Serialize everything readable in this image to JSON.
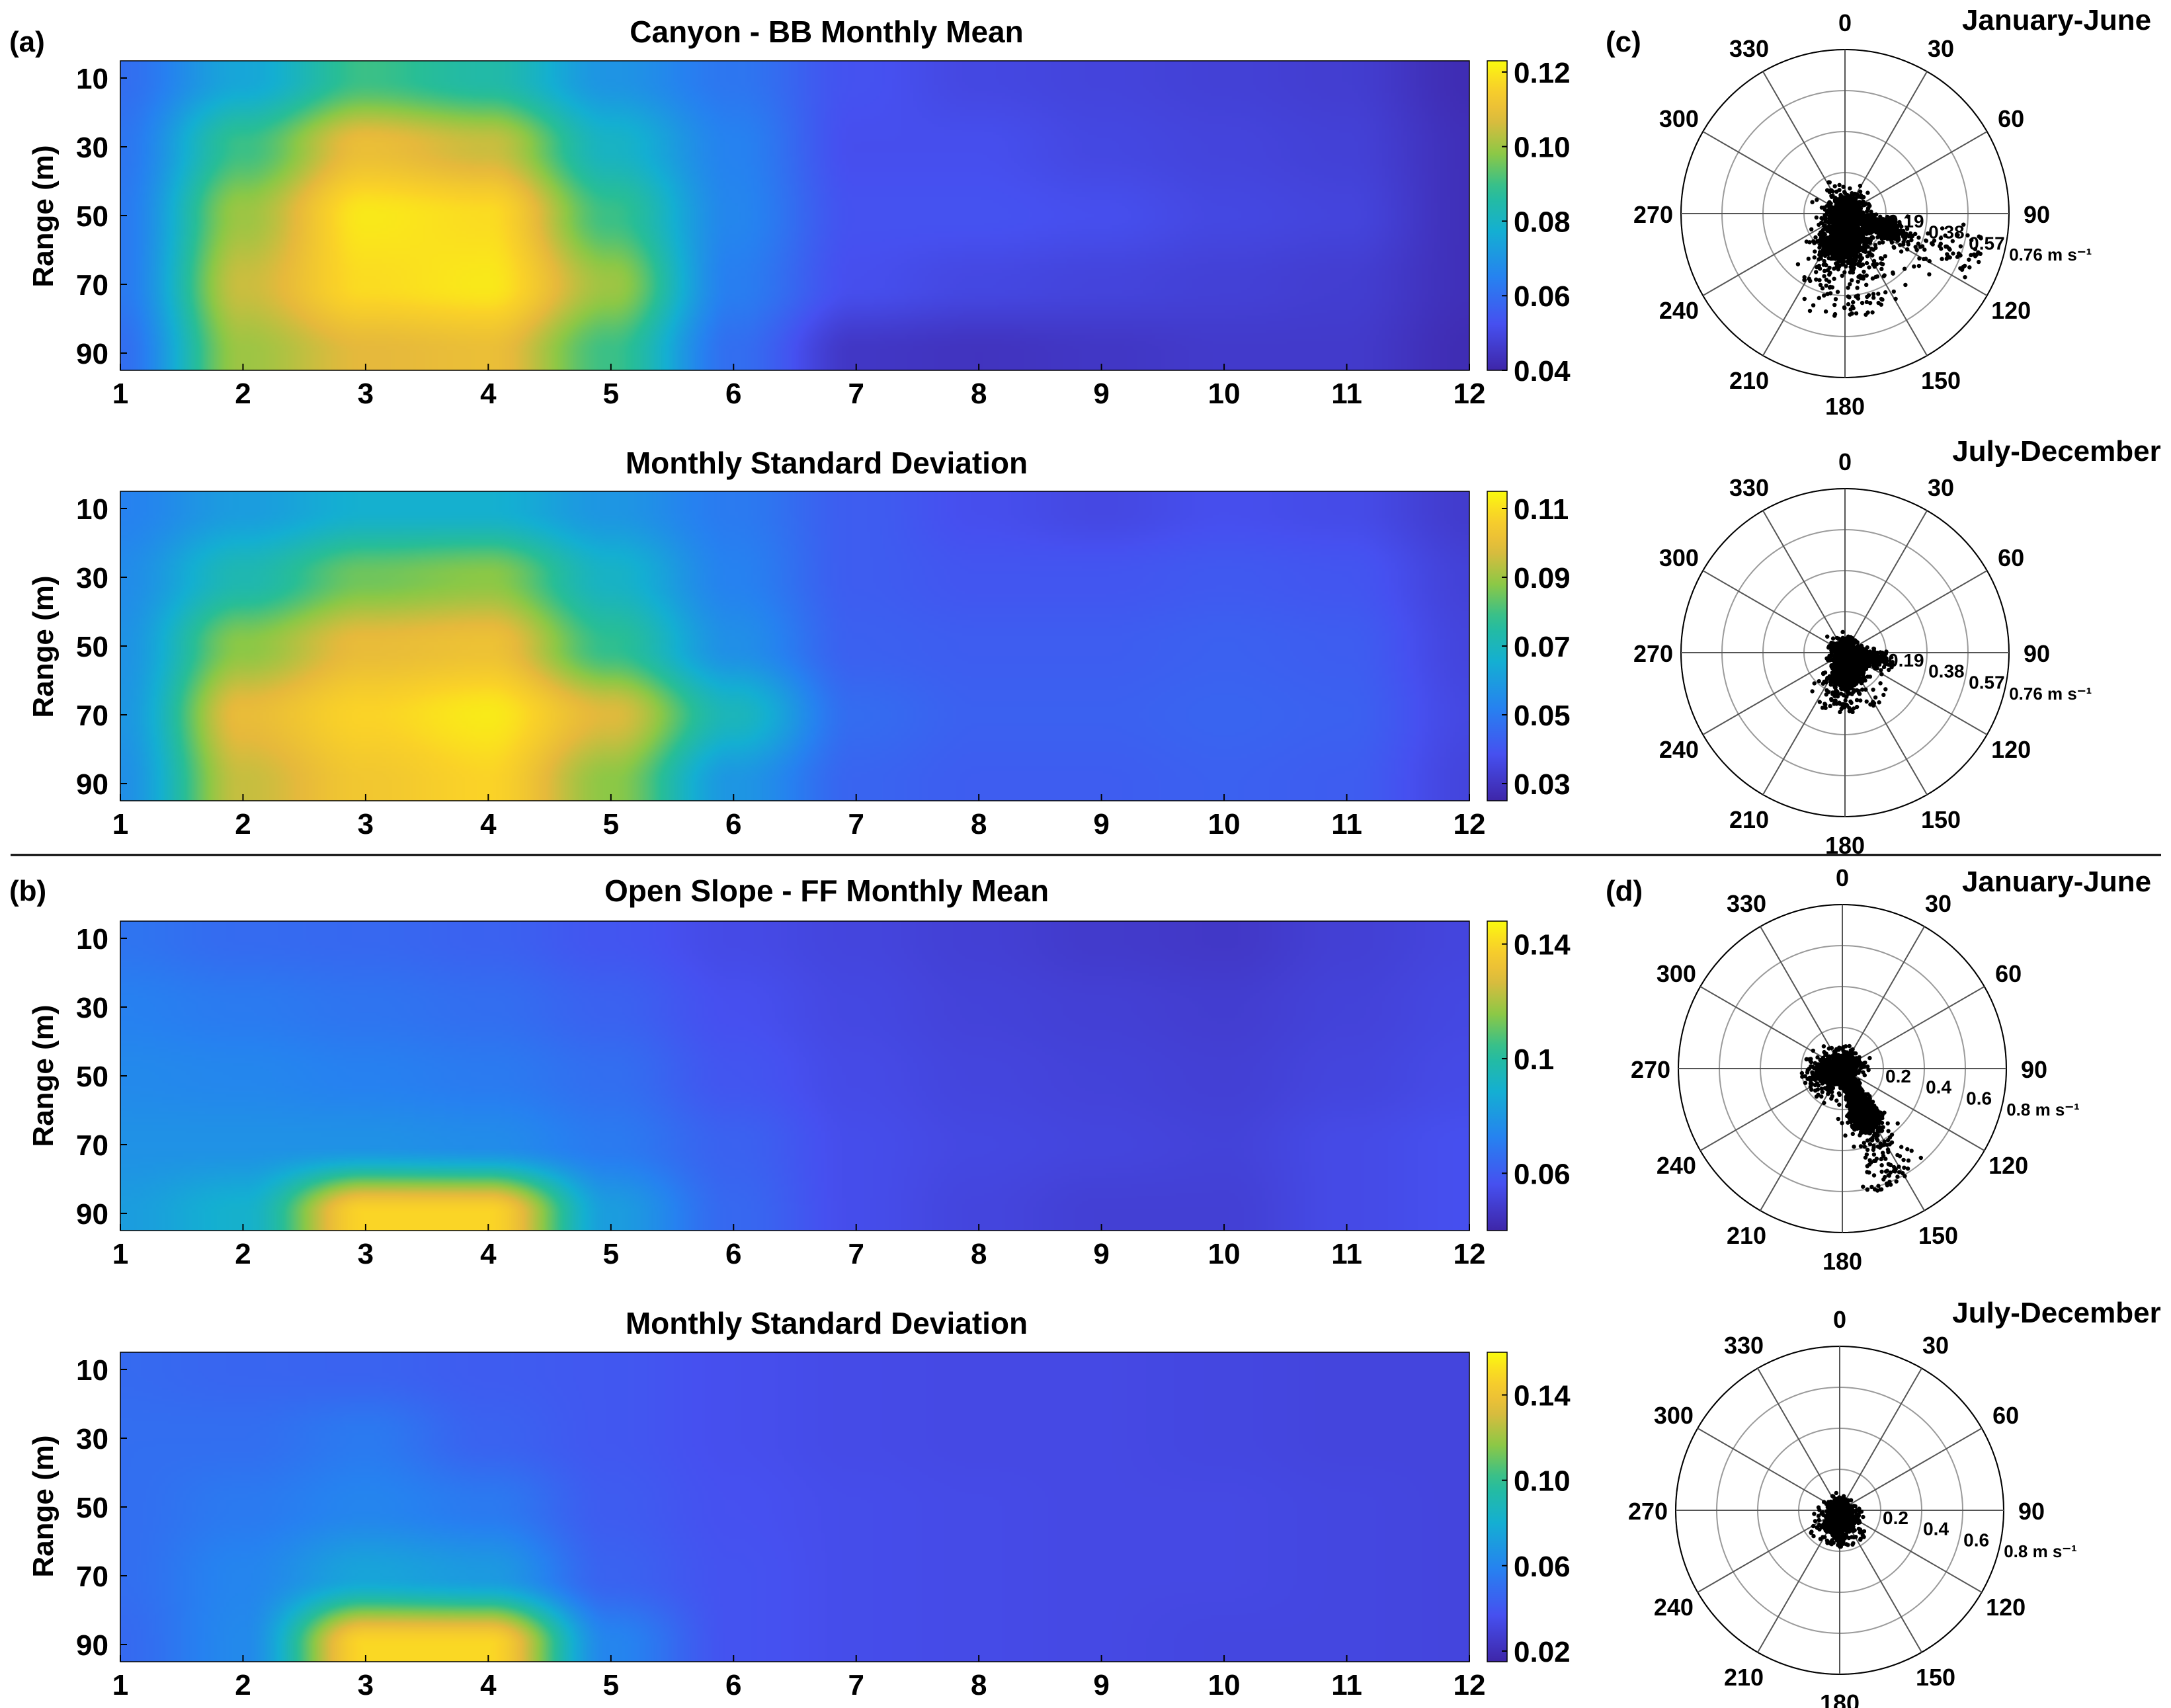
{
  "figure": {
    "panel_labels": [
      "(a)",
      "(b)",
      "(c)",
      "(d)"
    ]
  },
  "chart_data": [
    {
      "type": "heatmap",
      "panel": "(a)",
      "title": "Canyon - BB Monthly Mean",
      "xlabel": "",
      "ylabel": "Range (m)",
      "x_ticks": [
        "1",
        "2",
        "3",
        "4",
        "5",
        "6",
        "7",
        "8",
        "9",
        "10",
        "11",
        "12"
      ],
      "y_ticks": [
        "10",
        "30",
        "50",
        "70",
        "90"
      ],
      "xlim": [
        1,
        12
      ],
      "ylim": [
        5,
        95
      ],
      "colorbar": {
        "range": [
          0.04,
          0.123
        ],
        "ticks": [
          "0.04",
          "0.06",
          "0.08",
          "0.10",
          "0.12"
        ],
        "tick_values": [
          0.04,
          0.06,
          0.08,
          0.1,
          0.12
        ]
      },
      "x": [
        1,
        2,
        3,
        4,
        5,
        6,
        7,
        8,
        9,
        10,
        11,
        12
      ],
      "y": [
        10,
        30,
        50,
        70,
        90
      ],
      "z": [
        [
          0.06,
          0.075,
          0.09,
          0.085,
          0.07,
          0.062,
          0.053,
          0.05,
          0.049,
          0.048,
          0.047,
          0.042
        ],
        [
          0.062,
          0.09,
          0.11,
          0.105,
          0.08,
          0.065,
          0.052,
          0.052,
          0.05,
          0.049,
          0.048,
          0.043
        ],
        [
          0.063,
          0.1,
          0.12,
          0.118,
          0.09,
          0.066,
          0.053,
          0.053,
          0.052,
          0.05,
          0.049,
          0.043
        ],
        [
          0.063,
          0.105,
          0.118,
          0.12,
          0.1,
          0.064,
          0.052,
          0.05,
          0.049,
          0.048,
          0.047,
          0.043
        ],
        [
          0.06,
          0.1,
          0.108,
          0.11,
          0.09,
          0.06,
          0.045,
          0.044,
          0.045,
          0.046,
          0.046,
          0.042
        ]
      ]
    },
    {
      "type": "heatmap",
      "panel": "(a)",
      "title": "Monthly Standard Deviation",
      "xlabel": "",
      "ylabel": "Range (m)",
      "x_ticks": [
        "1",
        "2",
        "3",
        "4",
        "5",
        "6",
        "7",
        "8",
        "9",
        "10",
        "11",
        "12"
      ],
      "y_ticks": [
        "10",
        "30",
        "50",
        "70",
        "90"
      ],
      "xlim": [
        1,
        12
      ],
      "ylim": [
        5,
        95
      ],
      "colorbar": {
        "range": [
          0.025,
          0.115
        ],
        "ticks": [
          "0.03",
          "0.05",
          "0.07",
          "0.09",
          "0.11"
        ],
        "tick_values": [
          0.03,
          0.05,
          0.07,
          0.09,
          0.11
        ]
      },
      "x": [
        1,
        2,
        3,
        4,
        5,
        6,
        7,
        8,
        9,
        10,
        11,
        12
      ],
      "y": [
        10,
        30,
        50,
        70,
        90
      ],
      "z": [
        [
          0.052,
          0.06,
          0.066,
          0.066,
          0.058,
          0.05,
          0.042,
          0.038,
          0.036,
          0.038,
          0.037,
          0.032
        ],
        [
          0.055,
          0.072,
          0.085,
          0.088,
          0.068,
          0.052,
          0.042,
          0.04,
          0.04,
          0.041,
          0.04,
          0.034
        ],
        [
          0.057,
          0.088,
          0.1,
          0.102,
          0.078,
          0.056,
          0.043,
          0.042,
          0.042,
          0.043,
          0.042,
          0.035
        ],
        [
          0.058,
          0.1,
          0.108,
          0.112,
          0.098,
          0.07,
          0.046,
          0.043,
          0.043,
          0.044,
          0.043,
          0.036
        ],
        [
          0.056,
          0.095,
          0.104,
          0.108,
          0.088,
          0.058,
          0.044,
          0.042,
          0.042,
          0.043,
          0.042,
          0.035
        ]
      ]
    },
    {
      "type": "heatmap",
      "panel": "(b)",
      "title": "Open Slope - FF Monthly Mean",
      "xlabel": "",
      "ylabel": "Range (m)",
      "x_ticks": [
        "1",
        "2",
        "3",
        "4",
        "5",
        "6",
        "7",
        "8",
        "9",
        "10",
        "11",
        "12"
      ],
      "y_ticks": [
        "10",
        "30",
        "50",
        "70",
        "90"
      ],
      "xlim": [
        1,
        12
      ],
      "ylim": [
        5,
        95
      ],
      "colorbar": {
        "range": [
          0.04,
          0.148
        ],
        "ticks": [
          "0.06",
          "0.1",
          "0.14"
        ],
        "tick_values": [
          0.06,
          0.1,
          0.14
        ]
      },
      "x": [
        1,
        2,
        3,
        4,
        5,
        6,
        7,
        8,
        9,
        10,
        11,
        12
      ],
      "y": [
        10,
        30,
        50,
        70,
        90
      ],
      "z": [
        [
          0.068,
          0.065,
          0.064,
          0.062,
          0.058,
          0.054,
          0.052,
          0.05,
          0.048,
          0.047,
          0.05,
          0.052
        ],
        [
          0.072,
          0.07,
          0.068,
          0.066,
          0.062,
          0.056,
          0.053,
          0.051,
          0.05,
          0.049,
          0.051,
          0.053
        ],
        [
          0.075,
          0.074,
          0.072,
          0.07,
          0.066,
          0.058,
          0.054,
          0.052,
          0.051,
          0.05,
          0.052,
          0.054
        ],
        [
          0.078,
          0.078,
          0.078,
          0.076,
          0.07,
          0.062,
          0.055,
          0.053,
          0.052,
          0.051,
          0.054,
          0.056
        ],
        [
          0.082,
          0.09,
          0.14,
          0.14,
          0.082,
          0.064,
          0.055,
          0.052,
          0.05,
          0.05,
          0.054,
          0.056
        ]
      ]
    },
    {
      "type": "heatmap",
      "panel": "(b)",
      "title": "Monthly Standard Deviation",
      "xlabel": "",
      "ylabel": "Range (m)",
      "x_ticks": [
        "1",
        "2",
        "3",
        "4",
        "5",
        "6",
        "7",
        "8",
        "9",
        "10",
        "11",
        "12"
      ],
      "y_ticks": [
        "10",
        "30",
        "50",
        "70",
        "90"
      ],
      "xlim": [
        1,
        12
      ],
      "ylim": [
        5,
        95
      ],
      "colorbar": {
        "range": [
          0.015,
          0.16
        ],
        "ticks": [
          "0.02",
          "0.06",
          "0.10",
          "0.14"
        ],
        "tick_values": [
          0.02,
          0.06,
          0.1,
          0.14
        ]
      },
      "x": [
        1,
        2,
        3,
        4,
        5,
        6,
        7,
        8,
        9,
        10,
        11,
        12
      ],
      "y": [
        10,
        30,
        50,
        70,
        90
      ],
      "z": [
        [
          0.048,
          0.046,
          0.045,
          0.042,
          0.04,
          0.036,
          0.034,
          0.033,
          0.033,
          0.032,
          0.031,
          0.031
        ],
        [
          0.05,
          0.05,
          0.055,
          0.045,
          0.04,
          0.036,
          0.034,
          0.033,
          0.033,
          0.032,
          0.031,
          0.031
        ],
        [
          0.05,
          0.055,
          0.06,
          0.055,
          0.042,
          0.037,
          0.035,
          0.034,
          0.033,
          0.033,
          0.032,
          0.031
        ],
        [
          0.05,
          0.06,
          0.075,
          0.07,
          0.045,
          0.038,
          0.035,
          0.034,
          0.033,
          0.033,
          0.032,
          0.031
        ],
        [
          0.048,
          0.062,
          0.15,
          0.15,
          0.06,
          0.038,
          0.035,
          0.034,
          0.033,
          0.032,
          0.032,
          0.031
        ]
      ]
    },
    {
      "type": "scatter",
      "panel": "(c)",
      "title": "January-June",
      "polar": true,
      "angle_labels": [
        "0",
        "30",
        "60",
        "90",
        "120",
        "150",
        "180",
        "210",
        "240",
        "270",
        "300",
        "330"
      ],
      "radial_labels": [
        "0.19",
        "0.38",
        "0.57",
        "0.76 m s⁻¹"
      ],
      "radial_values": [
        0.19,
        0.38,
        0.57,
        0.76
      ],
      "rmax": 0.76,
      "cloud": {
        "sd_theta_deg": 32,
        "sd_r": 0.08
      },
      "lobes": [
        {
          "theta_deg": 180,
          "r": 0.14,
          "spread_deg": 40,
          "rmax": 0.48,
          "n": 1500
        },
        {
          "theta_deg": 110,
          "r": 0.18,
          "spread_deg": 12,
          "rmax": 0.66,
          "n": 800
        }
      ]
    },
    {
      "type": "scatter",
      "panel": "(c)",
      "title": "July-December",
      "polar": true,
      "angle_labels": [
        "0",
        "30",
        "60",
        "90",
        "120",
        "150",
        "180",
        "210",
        "240",
        "270",
        "300",
        "330"
      ],
      "radial_labels": [
        "0.19",
        "0.38",
        "0.57",
        "0.76 m s⁻¹"
      ],
      "radial_values": [
        0.19,
        0.38,
        0.57,
        0.76
      ],
      "rmax": 0.76,
      "cloud": {
        "sd_theta_deg": 30,
        "sd_r": 0.05
      },
      "lobes": [
        {
          "theta_deg": 175,
          "r": 0.1,
          "spread_deg": 40,
          "rmax": 0.28,
          "n": 1000
        },
        {
          "theta_deg": 100,
          "r": 0.12,
          "spread_deg": 15,
          "rmax": 0.23,
          "n": 300
        }
      ]
    },
    {
      "type": "scatter",
      "panel": "(d)",
      "title": "January-June",
      "polar": true,
      "angle_labels": [
        "0",
        "30",
        "60",
        "90",
        "120",
        "150",
        "180",
        "210",
        "240",
        "270",
        "300",
        "330"
      ],
      "radial_labels": [
        "0.2",
        "0.4",
        "0.6",
        "0.8 m s⁻¹"
      ],
      "radial_values": [
        0.2,
        0.4,
        0.6,
        0.8
      ],
      "rmax": 0.8,
      "cloud": {
        "sd_theta_deg": 22,
        "sd_r": 0.07
      },
      "lobes": [
        {
          "theta_deg": 155,
          "r": 0.22,
          "spread_deg": 14,
          "rmax": 0.62,
          "n": 1400
        },
        {
          "theta_deg": 250,
          "r": 0.08,
          "spread_deg": 50,
          "rmax": 0.2,
          "n": 400
        }
      ]
    },
    {
      "type": "scatter",
      "panel": "(d)",
      "title": "July-December",
      "polar": true,
      "angle_labels": [
        "0",
        "30",
        "60",
        "90",
        "120",
        "150",
        "180",
        "210",
        "240",
        "270",
        "300",
        "330"
      ],
      "radial_labels": [
        "0.2",
        "0.4",
        "0.6",
        "0.8 m s⁻¹"
      ],
      "radial_values": [
        0.2,
        0.4,
        0.6,
        0.8
      ],
      "rmax": 0.8,
      "cloud": {
        "sd_theta_deg": 40,
        "sd_r": 0.04
      },
      "lobes": [
        {
          "theta_deg": 180,
          "r": 0.07,
          "spread_deg": 60,
          "rmax": 0.18,
          "n": 900
        }
      ]
    }
  ]
}
